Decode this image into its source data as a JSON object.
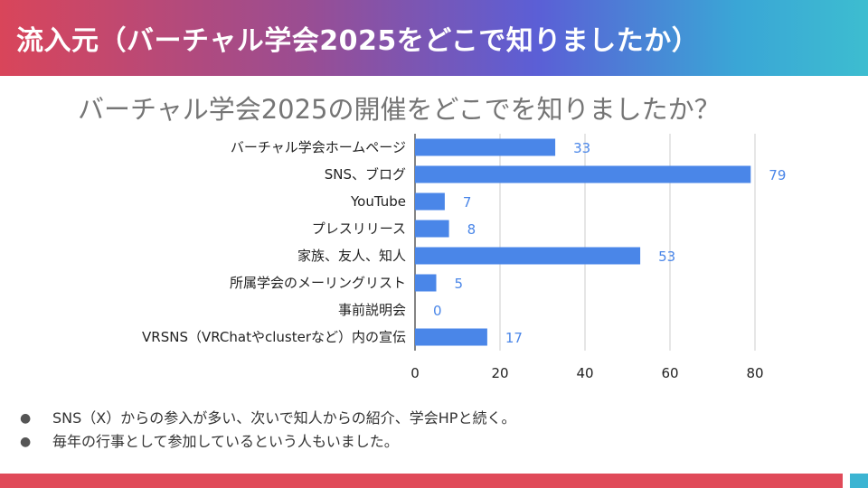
{
  "header": {
    "title": "流入元（バーチャル学会2025をどこで知りましたか）"
  },
  "bullets": [
    "SNS（X）からの参入が多い、次いで知人からの紹介、学会HPと続く。",
    "毎年の行事として参加しているという人もいました。"
  ],
  "chart_data": {
    "type": "bar",
    "orientation": "horizontal",
    "title": "バーチャル学会2025の開催をどこでを知りましたか？",
    "categories": [
      "バーチャル学会ホームページ",
      "SNS、ブログ",
      "YouTube",
      "プレスリリース",
      "家族、友人、知人",
      "所属学会のメーリングリスト",
      "事前説明会",
      "VRSNS（VRChatやclusterなど）内の宣伝"
    ],
    "values": [
      33,
      79,
      7,
      8,
      53,
      5,
      0,
      17
    ],
    "xlim": [
      0,
      80
    ],
    "xticks": [
      0,
      20,
      40,
      60,
      80
    ],
    "xtick_labels": [
      "0",
      "20",
      "40",
      "60",
      "80"
    ],
    "grid": true,
    "bar_color": "#4a86e8",
    "value_label_color": "#4a86e8"
  }
}
